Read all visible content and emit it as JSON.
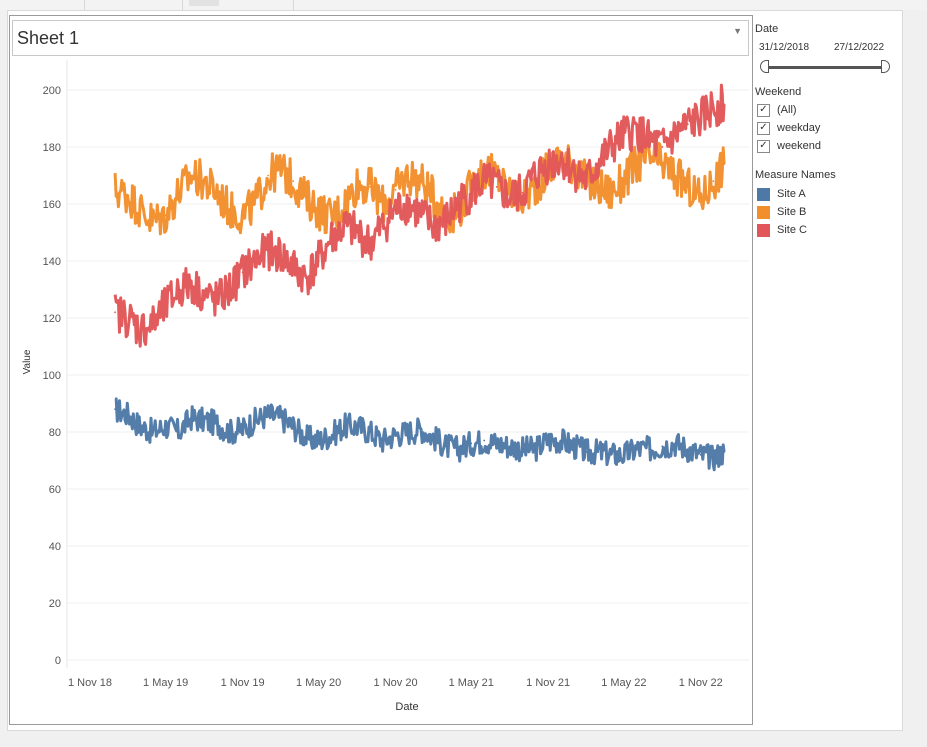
{
  "sheet": {
    "title": "Sheet 1"
  },
  "filters": {
    "date": {
      "title": "Date",
      "start": "31/12/2018",
      "end": "27/12/2022"
    },
    "weekend": {
      "title": "Weekend",
      "items": [
        {
          "label": "(All)",
          "checked": true
        },
        {
          "label": "weekday",
          "checked": true
        },
        {
          "label": "weekend",
          "checked": true
        }
      ]
    }
  },
  "legend": {
    "title": "Measure Names",
    "items": [
      {
        "label": "Site A",
        "color": "#4e79a7"
      },
      {
        "label": "Site B",
        "color": "#f28e2b"
      },
      {
        "label": "Site C",
        "color": "#e15759"
      }
    ]
  },
  "chart_data": {
    "type": "line",
    "xlabel": "Date",
    "ylabel": "Value",
    "ylim": [
      0,
      200
    ],
    "yticks": [
      0,
      20,
      40,
      60,
      80,
      100,
      120,
      140,
      160,
      180,
      200
    ],
    "xlim": [
      "2018-11-01",
      "2023-01-10"
    ],
    "xticks": [
      {
        "date": "2018-11-01",
        "label": "1 Nov 18"
      },
      {
        "date": "2019-05-01",
        "label": "1 May 19"
      },
      {
        "date": "2019-11-01",
        "label": "1 Nov 19"
      },
      {
        "date": "2020-05-01",
        "label": "1 May 20"
      },
      {
        "date": "2020-11-01",
        "label": "1 Nov 20"
      },
      {
        "date": "2021-05-01",
        "label": "1 May 21"
      },
      {
        "date": "2021-11-01",
        "label": "1 Nov 21"
      },
      {
        "date": "2022-05-01",
        "label": "1 May 22"
      },
      {
        "date": "2022-11-01",
        "label": "1 Nov 22"
      }
    ],
    "grid": true,
    "legend_position": "right",
    "series": [
      {
        "name": "Site A",
        "color": "#4e79a7",
        "x": [
          "2018-12-31",
          "2019-02-01",
          "2019-03-01",
          "2019-04-01",
          "2019-05-01",
          "2019-06-01",
          "2019-07-01",
          "2019-08-01",
          "2019-09-01",
          "2019-10-01",
          "2019-11-01",
          "2019-12-01",
          "2020-01-01",
          "2020-02-01",
          "2020-03-01",
          "2020-04-01",
          "2020-05-01",
          "2020-06-01",
          "2020-07-01",
          "2020-08-01",
          "2020-09-01",
          "2020-10-01",
          "2020-11-01",
          "2020-12-01",
          "2021-01-01",
          "2021-02-01",
          "2021-03-01",
          "2021-04-01",
          "2021-05-01",
          "2021-06-01",
          "2021-07-01",
          "2021-08-01",
          "2021-09-01",
          "2021-10-01",
          "2021-11-01",
          "2021-12-01",
          "2022-01-01",
          "2022-02-01",
          "2022-03-01",
          "2022-04-01",
          "2022-05-01",
          "2022-06-01",
          "2022-07-01",
          "2022-08-01",
          "2022-09-01",
          "2022-10-01",
          "2022-11-01",
          "2022-12-01",
          "2022-12-27"
        ],
        "values": [
          88,
          86,
          82,
          80,
          82,
          80,
          85,
          84,
          83,
          80,
          81,
          84,
          86,
          85,
          82,
          78,
          77,
          79,
          82,
          82,
          80,
          77,
          79,
          80,
          81,
          78,
          75,
          74,
          76,
          77,
          76,
          75,
          74,
          74,
          77,
          77,
          75,
          73,
          73,
          72,
          72,
          74,
          74,
          75,
          76,
          74,
          72,
          71,
          73
        ]
      },
      {
        "name": "Site B",
        "color": "#f28e2b",
        "x": [
          "2018-12-31",
          "2019-02-01",
          "2019-03-01",
          "2019-04-01",
          "2019-05-01",
          "2019-06-01",
          "2019-07-01",
          "2019-08-01",
          "2019-09-01",
          "2019-10-01",
          "2019-11-01",
          "2019-12-01",
          "2020-01-01",
          "2020-02-01",
          "2020-03-01",
          "2020-04-01",
          "2020-05-01",
          "2020-06-01",
          "2020-07-01",
          "2020-08-01",
          "2020-09-01",
          "2020-10-01",
          "2020-11-01",
          "2020-12-01",
          "2021-01-01",
          "2021-02-01",
          "2021-03-01",
          "2021-04-01",
          "2021-05-01",
          "2021-06-01",
          "2021-07-01",
          "2021-08-01",
          "2021-09-01",
          "2021-10-01",
          "2021-11-01",
          "2021-12-01",
          "2022-01-01",
          "2022-02-01",
          "2022-03-01",
          "2022-04-01",
          "2022-05-01",
          "2022-06-01",
          "2022-07-01",
          "2022-08-01",
          "2022-09-01",
          "2022-10-01",
          "2022-11-01",
          "2022-12-01",
          "2022-12-27"
        ],
        "values": [
          165,
          163,
          158,
          154,
          156,
          164,
          170,
          168,
          164,
          158,
          156,
          160,
          170,
          172,
          168,
          162,
          158,
          155,
          160,
          167,
          166,
          160,
          165,
          170,
          168,
          162,
          156,
          158,
          166,
          172,
          170,
          164,
          162,
          166,
          172,
          176,
          174,
          168,
          166,
          164,
          168,
          174,
          176,
          174,
          170,
          166,
          162,
          168,
          174
        ]
      },
      {
        "name": "Site C",
        "color": "#e15759",
        "x": [
          "2018-12-31",
          "2019-02-01",
          "2019-03-01",
          "2019-04-01",
          "2019-05-01",
          "2019-06-01",
          "2019-07-01",
          "2019-08-01",
          "2019-09-01",
          "2019-10-01",
          "2019-11-01",
          "2019-12-01",
          "2020-01-01",
          "2020-02-01",
          "2020-03-01",
          "2020-04-01",
          "2020-05-01",
          "2020-06-01",
          "2020-07-01",
          "2020-08-01",
          "2020-09-01",
          "2020-10-01",
          "2020-11-01",
          "2020-12-01",
          "2021-01-01",
          "2021-02-01",
          "2021-03-01",
          "2021-04-01",
          "2021-05-01",
          "2021-06-01",
          "2021-07-01",
          "2021-08-01",
          "2021-09-01",
          "2021-10-01",
          "2021-11-01",
          "2021-12-01",
          "2022-01-01",
          "2022-02-01",
          "2022-03-01",
          "2022-04-01",
          "2022-05-01",
          "2022-06-01",
          "2022-07-01",
          "2022-08-01",
          "2022-09-01",
          "2022-10-01",
          "2022-11-01",
          "2022-12-01",
          "2022-12-27"
        ],
        "values": [
          122,
          120,
          116,
          118,
          124,
          130,
          132,
          128,
          126,
          130,
          136,
          140,
          144,
          142,
          138,
          134,
          140,
          148,
          152,
          150,
          146,
          152,
          158,
          160,
          156,
          152,
          154,
          160,
          164,
          168,
          166,
          162,
          164,
          170,
          174,
          176,
          172,
          168,
          174,
          180,
          184,
          186,
          182,
          180,
          184,
          188,
          190,
          194,
          195
        ]
      }
    ]
  }
}
